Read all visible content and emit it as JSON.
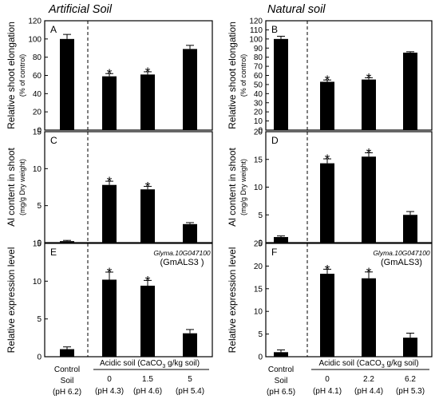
{
  "figure": {
    "colors": {
      "bar": "#000000",
      "axis": "#000000",
      "background": "#ffffff"
    }
  },
  "chart_data": [
    {
      "type": "bar",
      "panel": "A",
      "column": "Artificial Soil",
      "categories": [
        "Control Soil",
        "0",
        "1.5",
        "5"
      ],
      "values": [
        100,
        59,
        61,
        89
      ],
      "errors": [
        5,
        3,
        3,
        4
      ],
      "significant": [
        false,
        true,
        true,
        false
      ],
      "ylabel": "Relative shoot elongation",
      "ylabel_sub": "(% of control)",
      "ylim": [
        0,
        120
      ],
      "yticks": [
        "0",
        "20",
        "40",
        "60",
        "80",
        "100",
        "120"
      ]
    },
    {
      "type": "bar",
      "panel": "C",
      "column": "Artificial Soil",
      "categories": [
        "Control Soil",
        "0",
        "1.5",
        "5"
      ],
      "values": [
        0.2,
        7.8,
        7.2,
        2.5
      ],
      "errors": [
        0.1,
        0.5,
        0.4,
        0.2
      ],
      "significant": [
        false,
        true,
        true,
        false
      ],
      "ylabel": "Al content in shoot",
      "ylabel_sub": "(mg/g  Dry weight)",
      "ylim": [
        0,
        15
      ],
      "yticks": [
        "0",
        "5",
        "10",
        "15"
      ]
    },
    {
      "type": "bar",
      "panel": "E",
      "column": "Artificial Soil",
      "categories": [
        "Control Soil",
        "0",
        "1.5",
        "5"
      ],
      "values": [
        1,
        10.2,
        9.4,
        3.1
      ],
      "errors": [
        0.3,
        1.0,
        0.7,
        0.5
      ],
      "significant": [
        false,
        true,
        true,
        false
      ],
      "ylabel": "Relative expression level",
      "ylabel_sub": "",
      "gene_italic": "Glyma.10G047100",
      "gene_name": "(GmALS3 )",
      "ylim": [
        0,
        15
      ],
      "yticks": [
        "0",
        "5",
        "10",
        "15"
      ]
    },
    {
      "type": "bar",
      "panel": "B",
      "column": "Natural soil",
      "categories": [
        "Control Soil",
        "0",
        "2.2",
        "6.2"
      ],
      "values": [
        100,
        53,
        55.5,
        85
      ],
      "errors": [
        3,
        2,
        2,
        1
      ],
      "significant": [
        false,
        true,
        true,
        false
      ],
      "ylabel": "Relative shoot elongation",
      "ylabel_sub": "(% of control)",
      "ylim": [
        0,
        120
      ],
      "yticks": [
        "0",
        "10",
        "20",
        "30",
        "40",
        "50",
        "60",
        "70",
        "80",
        "90",
        "100",
        "110",
        "120"
      ]
    },
    {
      "type": "bar",
      "panel": "D",
      "column": "Natural soil",
      "categories": [
        "Control Soil",
        "0",
        "2.2",
        "6.2"
      ],
      "values": [
        1,
        14.3,
        15.5,
        5
      ],
      "errors": [
        0.2,
        0.8,
        0.7,
        0.6
      ],
      "significant": [
        false,
        true,
        true,
        false
      ],
      "ylabel": "Al content in shoot",
      "ylabel_sub": "(mg/g  Dry weight)",
      "ylim": [
        0,
        20
      ],
      "yticks": [
        "0",
        "5",
        "10",
        "15",
        "20"
      ]
    },
    {
      "type": "bar",
      "panel": "F",
      "column": "Natural soil",
      "categories": [
        "Control Soil",
        "0",
        "2.2",
        "6.2"
      ],
      "values": [
        1,
        18.3,
        17.3,
        4.2
      ],
      "errors": [
        0.5,
        1.0,
        1.4,
        1.0
      ],
      "significant": [
        false,
        true,
        true,
        false
      ],
      "ylabel": "Relative expression level",
      "ylabel_sub": "",
      "gene_italic": "Glyma.10G047100",
      "gene_name": "(GmALS3)",
      "ylim": [
        0,
        25
      ],
      "yticks": [
        "0",
        "5",
        "10",
        "15",
        "20",
        "25"
      ]
    }
  ],
  "columns": [
    {
      "title": "Artificial Soil",
      "control_label": [
        "Control",
        "Soil",
        "(pH  6.2)"
      ],
      "acidic_label_pre": "Acidic soil (CaCO",
      "acidic_label_sub": "3",
      "acidic_label_post": " g/kg soil)",
      "amounts": [
        "0",
        "1.5",
        "5"
      ],
      "ph": [
        "(pH  4.3)",
        "(pH  4.6)",
        "(pH  5.4)"
      ]
    },
    {
      "title": "Natural soil",
      "control_label": [
        "Control",
        "Soil",
        "(pH  6.5)"
      ],
      "acidic_label_pre": "Acidic soil (CaCO",
      "acidic_label_sub": "3",
      "acidic_label_post": " g/kg soil)",
      "amounts": [
        "0",
        "2.2",
        "6.2"
      ],
      "ph": [
        "(pH  4.1)",
        "(pH  4.4)",
        "(pH  5.3)"
      ]
    }
  ],
  "significance_marker": "*"
}
